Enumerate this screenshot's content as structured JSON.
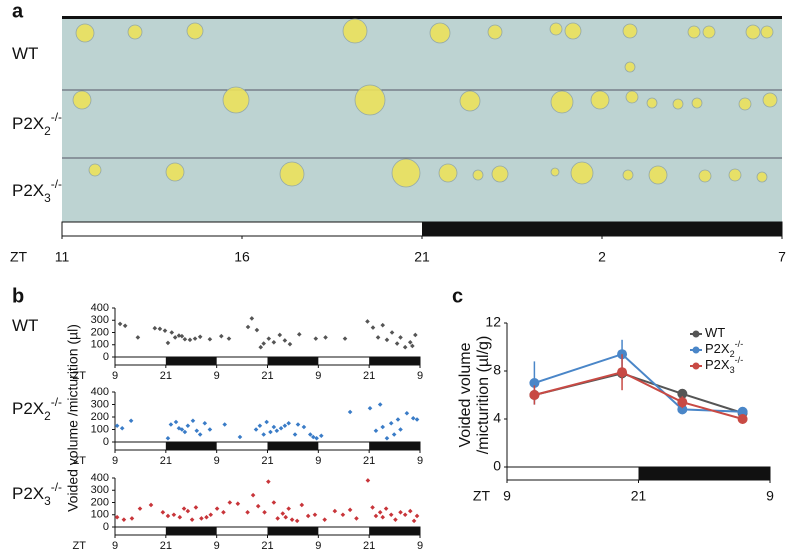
{
  "chart_data": [
    {
      "type": "photo",
      "panel_label": "a",
      "x_label": "ZT",
      "rows": [
        [
          "WT"
        ],
        [
          "P2X",
          "2",
          "-/-"
        ],
        [
          "P2X",
          "3",
          "-/-"
        ]
      ],
      "xlim": [
        0,
        20
      ],
      "xticks": [
        {
          "value": 0,
          "label": "11"
        },
        {
          "value": 5,
          "label": "16"
        },
        {
          "value": 10,
          "label": "21"
        },
        {
          "value": 15,
          "label": "2"
        },
        {
          "value": 20,
          "label": "7"
        }
      ],
      "dark_periods": [
        [
          10,
          20
        ]
      ]
    },
    {
      "type": "scatter",
      "panel_label": "b",
      "title": [
        "WT"
      ],
      "x_label": "ZT",
      "y_label": "Voided volume /micturition (µl)",
      "color": "#555555",
      "xlim": [
        0,
        72
      ],
      "ylim": [
        0,
        400
      ],
      "yticks": [
        0,
        100,
        200,
        300,
        400
      ],
      "xticks": [
        {
          "value": 0,
          "label": "9"
        },
        {
          "value": 12,
          "label": "21"
        },
        {
          "value": 24,
          "label": "9"
        },
        {
          "value": 36,
          "label": "21"
        },
        {
          "value": 48,
          "label": "9"
        },
        {
          "value": 60,
          "label": "21"
        },
        {
          "value": 72,
          "label": "9"
        }
      ],
      "dark_periods": [
        [
          12,
          24
        ],
        [
          36,
          48
        ],
        [
          60,
          72
        ]
      ],
      "x": [
        1.2,
        2.4,
        5.4,
        9.4,
        10.6,
        11.8,
        12.5,
        13.4,
        14.2,
        15.1,
        15.8,
        16.5,
        17.7,
        18.9,
        20.1,
        22.4,
        25.1,
        26.9,
        31.4,
        32.3,
        33.5,
        34.4,
        35.1,
        36.3,
        37.5,
        38.9,
        40.1,
        41.3,
        43.5,
        47.4,
        49.7,
        54.3,
        59.6,
        60.9,
        62.1,
        63.2,
        64.2,
        65.4,
        66.6,
        67.4,
        68.5,
        69.7,
        70.2,
        70.9
      ],
      "values": [
        270,
        255,
        160,
        235,
        230,
        215,
        115,
        200,
        160,
        175,
        170,
        145,
        140,
        150,
        165,
        145,
        170,
        150,
        245,
        315,
        220,
        80,
        110,
        150,
        120,
        180,
        135,
        105,
        185,
        150,
        160,
        150,
        290,
        240,
        160,
        260,
        140,
        200,
        110,
        160,
        80,
        120,
        90,
        180
      ]
    },
    {
      "type": "scatter",
      "title": [
        "P2X",
        "2",
        "-/-"
      ],
      "x_label": "ZT",
      "color": "#3a7cc7",
      "xlim": [
        0,
        72
      ],
      "ylim": [
        0,
        400
      ],
      "yticks": [
        0,
        100,
        200,
        300,
        400
      ],
      "xticks": [
        {
          "value": 0,
          "label": "9"
        },
        {
          "value": 12,
          "label": "21"
        },
        {
          "value": 24,
          "label": "9"
        },
        {
          "value": 36,
          "label": "21"
        },
        {
          "value": 48,
          "label": "9"
        },
        {
          "value": 60,
          "label": "21"
        },
        {
          "value": 72,
          "label": "9"
        }
      ],
      "dark_periods": [
        [
          12,
          24
        ],
        [
          36,
          48
        ],
        [
          60,
          72
        ]
      ],
      "x": [
        0.5,
        1.7,
        3.8,
        12.5,
        13.2,
        14.4,
        15.1,
        15.8,
        16.5,
        17.2,
        18.4,
        19.3,
        20.1,
        21.2,
        22.4,
        25.9,
        29.5,
        33.3,
        34.2,
        35.1,
        35.8,
        36.7,
        37.5,
        38.2,
        39.2,
        40.1,
        41.0,
        42.5,
        43.2,
        44.6,
        46.1,
        46.8,
        47.6,
        48.7,
        55.5,
        60.2,
        61.6,
        62.6,
        63.2,
        64.2,
        65.2,
        65.9,
        66.8,
        67.4,
        68.9,
        70.4,
        71.3
      ],
      "values": [
        130,
        110,
        170,
        30,
        140,
        160,
        110,
        100,
        80,
        130,
        170,
        90,
        60,
        150,
        100,
        140,
        40,
        100,
        130,
        60,
        160,
        80,
        120,
        90,
        110,
        130,
        150,
        60,
        140,
        120,
        60,
        40,
        30,
        50,
        240,
        270,
        90,
        300,
        120,
        30,
        150,
        60,
        180,
        100,
        230,
        190,
        180
      ]
    },
    {
      "type": "scatter",
      "title": [
        "P2X",
        "3",
        "-/-"
      ],
      "x_label": "ZT",
      "color": "#c8353a",
      "xlim": [
        0,
        72
      ],
      "ylim": [
        0,
        400
      ],
      "yticks": [
        0,
        100,
        200,
        300,
        400
      ],
      "xticks": [
        {
          "value": 0,
          "label": "9"
        },
        {
          "value": 12,
          "label": "21"
        },
        {
          "value": 24,
          "label": "9"
        },
        {
          "value": 36,
          "label": "21"
        },
        {
          "value": 48,
          "label": "9"
        },
        {
          "value": 60,
          "label": "21"
        },
        {
          "value": 72,
          "label": "9"
        }
      ],
      "dark_periods": [
        [
          12,
          24
        ],
        [
          36,
          48
        ],
        [
          60,
          72
        ]
      ],
      "x": [
        0.5,
        2.1,
        4.0,
        5.9,
        8.5,
        11.3,
        12.5,
        13.9,
        15.3,
        16.3,
        17.2,
        18.2,
        19.1,
        20.4,
        21.6,
        22.6,
        24.1,
        25.6,
        27.1,
        29.0,
        31.3,
        32.6,
        33.8,
        35.3,
        36.2,
        37.5,
        38.4,
        39.6,
        40.3,
        41.0,
        41.8,
        43.0,
        44.1,
        45.6,
        47.2,
        49.5,
        51.9,
        53.8,
        55.5,
        57.0,
        59.7,
        60.8,
        61.6,
        62.6,
        63.2,
        64.0,
        65.2,
        66.2,
        67.4,
        68.5,
        69.7,
        70.6,
        71.3
      ],
      "values": [
        80,
        60,
        70,
        150,
        180,
        120,
        90,
        100,
        80,
        150,
        130,
        60,
        160,
        70,
        80,
        100,
        150,
        120,
        200,
        190,
        120,
        260,
        170,
        120,
        370,
        200,
        70,
        110,
        80,
        150,
        60,
        50,
        180,
        90,
        100,
        60,
        130,
        100,
        140,
        70,
        380,
        160,
        90,
        120,
        80,
        150,
        100,
        60,
        120,
        100,
        130,
        50,
        90
      ]
    },
    {
      "type": "line",
      "panel_label": "c",
      "x_label": "ZT",
      "y_label": [
        "Voided volume",
        "/micturition (µl/g)"
      ],
      "x": [
        2.5,
        10.5,
        16,
        21.5
      ],
      "xlim": [
        0,
        24
      ],
      "xticks": [
        {
          "value": 0,
          "label": "9"
        },
        {
          "value": 12,
          "label": "21"
        },
        {
          "value": 24,
          "label": "9"
        }
      ],
      "ylim": [
        0,
        12
      ],
      "yticks": [
        0,
        4,
        8,
        12
      ],
      "dark_periods": [
        [
          12,
          24
        ]
      ],
      "series": [
        {
          "name": [
            "WT"
          ],
          "color": "#555555",
          "values": [
            6.0,
            7.8,
            6.1,
            4.5
          ],
          "errors": [
            0.5,
            0.5,
            0.4,
            0.4
          ]
        },
        {
          "name": [
            "P2X",
            "2",
            "-/-"
          ],
          "color": "#4a86c8",
          "values": [
            7.0,
            9.4,
            4.8,
            4.6
          ],
          "errors": [
            1.8,
            1.2,
            0.4,
            0.3
          ]
        },
        {
          "name": [
            "P2X",
            "3",
            "-/-"
          ],
          "color": "#c84a44",
          "values": [
            6.0,
            7.9,
            5.4,
            4.0
          ],
          "errors": [
            0.8,
            1.5,
            0.5,
            0.4
          ]
        }
      ]
    }
  ]
}
